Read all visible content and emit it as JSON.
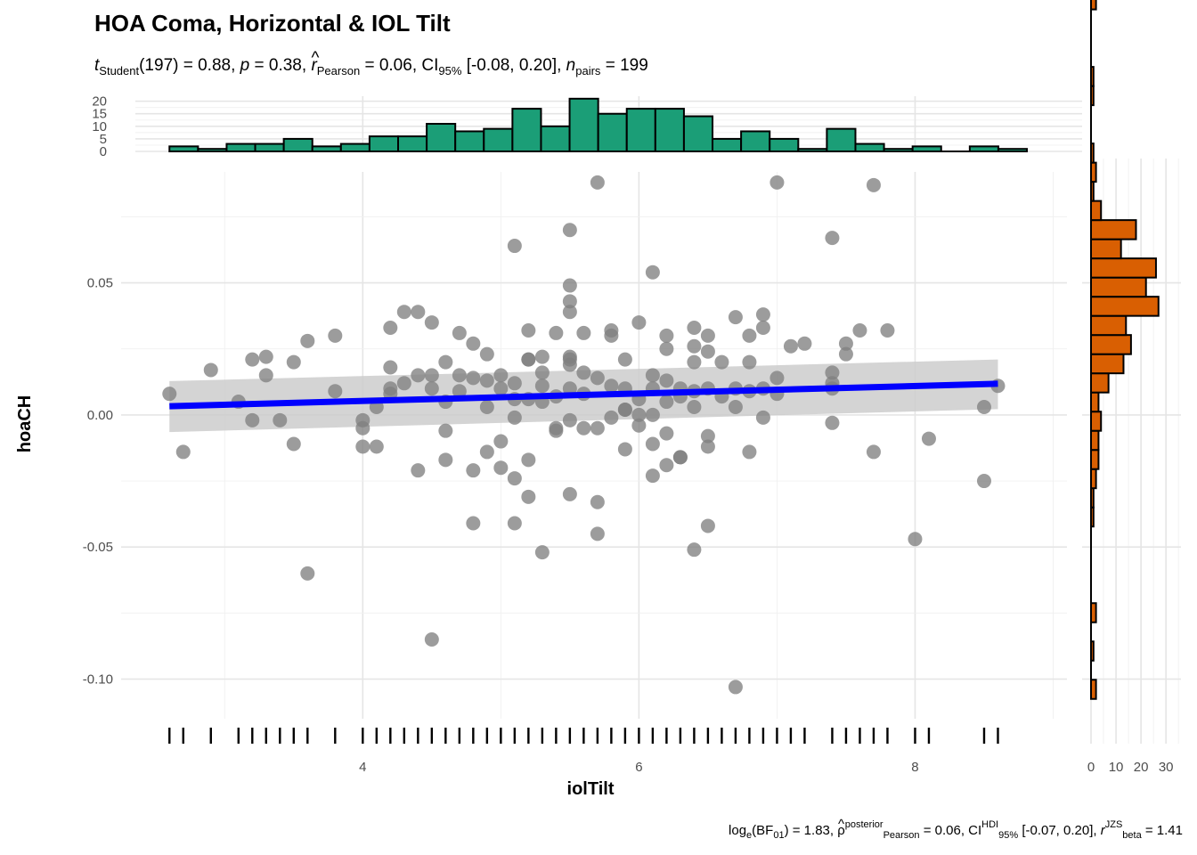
{
  "chart_data": {
    "type": "scatter",
    "title": "HOA Coma, Horizontal & IOL Tilt",
    "subtitle": {
      "t_symbol": "t",
      "t_sub": "Student",
      "t_val": "(197) = 0.88, ",
      "p_symbol": "p",
      "p_val": " = 0.38, ",
      "r_symbol": "r",
      "r_hat": "^",
      "r_sub": "Pearson",
      "r_val": " = 0.06, CI",
      "ci_sub": "95%",
      "ci_val": " [-0.08, 0.20], ",
      "n_symbol": "n",
      "n_sub": "pairs",
      "n_val": " = 199"
    },
    "footer": {
      "lead": "log",
      "lead_sub": "e",
      "bf_open": "(BF",
      "bf_sub": "01",
      "bf_val": ") = 1.83, ",
      "rho": "ρ",
      "rho_hat": "^",
      "rho_sup": "posterior",
      "rho_sub": "Pearson",
      "rho_val": " = 0.06, CI",
      "ci_sup": "HDI",
      "ci_sub": "95%",
      "ci_val": " [-0.07, 0.20], ",
      "r_symbol": "r",
      "r_sup": "JZS",
      "r_sub": "beta",
      "r_val": " = 1.41"
    },
    "xlabel": "iolTilt",
    "ylabel": "hoaCH",
    "xlim": [
      2.25,
      9.1
    ],
    "ylim": [
      -0.115,
      0.092
    ],
    "x_ticks": [
      4,
      6,
      8
    ],
    "x_tick_labels": [
      "4",
      "6",
      "8"
    ],
    "y_ticks": [
      -0.1,
      -0.05,
      0.0,
      0.05
    ],
    "y_tick_labels": [
      "-0.10",
      "-0.05",
      "0.00",
      "0.05"
    ],
    "grid": true,
    "point_color": "#808080",
    "points": [
      [
        2.6,
        0.008
      ],
      [
        2.7,
        -0.014
      ],
      [
        2.9,
        0.017
      ],
      [
        3.1,
        0.005
      ],
      [
        3.2,
        0.021
      ],
      [
        3.2,
        -0.002
      ],
      [
        3.3,
        0.015
      ],
      [
        3.3,
        0.022
      ],
      [
        3.4,
        -0.002
      ],
      [
        3.5,
        0.02
      ],
      [
        3.5,
        -0.011
      ],
      [
        3.6,
        0.028
      ],
      [
        3.6,
        -0.06
      ],
      [
        3.8,
        0.03
      ],
      [
        3.8,
        0.009
      ],
      [
        4.0,
        -0.002
      ],
      [
        4.0,
        -0.005
      ],
      [
        4.0,
        -0.012
      ],
      [
        4.1,
        0.003
      ],
      [
        4.1,
        -0.012
      ],
      [
        4.2,
        0.033
      ],
      [
        4.2,
        0.018
      ],
      [
        4.2,
        0.01
      ],
      [
        4.2,
        0.008
      ],
      [
        4.3,
        0.039
      ],
      [
        4.3,
        0.012
      ],
      [
        4.4,
        0.039
      ],
      [
        4.4,
        0.015
      ],
      [
        4.4,
        -0.021
      ],
      [
        4.5,
        0.035
      ],
      [
        4.5,
        0.015
      ],
      [
        4.5,
        0.01
      ],
      [
        4.5,
        -0.085
      ],
      [
        4.6,
        0.02
      ],
      [
        4.6,
        0.005
      ],
      [
        4.6,
        -0.006
      ],
      [
        4.6,
        -0.017
      ],
      [
        4.7,
        0.031
      ],
      [
        4.7,
        0.015
      ],
      [
        4.7,
        0.009
      ],
      [
        4.8,
        0.027
      ],
      [
        4.8,
        0.014
      ],
      [
        4.8,
        -0.021
      ],
      [
        4.8,
        -0.041
      ],
      [
        4.9,
        0.023
      ],
      [
        4.9,
        0.013
      ],
      [
        4.9,
        0.003
      ],
      [
        4.9,
        -0.014
      ],
      [
        5.0,
        0.015
      ],
      [
        5.0,
        0.01
      ],
      [
        5.0,
        -0.01
      ],
      [
        5.0,
        -0.02
      ],
      [
        5.1,
        0.064
      ],
      [
        5.1,
        0.012
      ],
      [
        5.1,
        0.006
      ],
      [
        5.1,
        -0.001
      ],
      [
        5.1,
        -0.024
      ],
      [
        5.1,
        -0.041
      ],
      [
        5.2,
        0.032
      ],
      [
        5.2,
        0.021
      ],
      [
        5.2,
        0.021
      ],
      [
        5.2,
        0.006
      ],
      [
        5.2,
        -0.017
      ],
      [
        5.2,
        -0.031
      ],
      [
        5.3,
        0.022
      ],
      [
        5.3,
        0.016
      ],
      [
        5.3,
        0.011
      ],
      [
        5.3,
        0.005
      ],
      [
        5.3,
        -0.052
      ],
      [
        5.4,
        0.031
      ],
      [
        5.4,
        0.007
      ],
      [
        5.4,
        -0.005
      ],
      [
        5.4,
        -0.006
      ],
      [
        5.5,
        0.07
      ],
      [
        5.5,
        0.049
      ],
      [
        5.5,
        0.043
      ],
      [
        5.5,
        0.039
      ],
      [
        5.5,
        0.022
      ],
      [
        5.5,
        0.021
      ],
      [
        5.5,
        0.019
      ],
      [
        5.5,
        0.01
      ],
      [
        5.5,
        -0.002
      ],
      [
        5.5,
        -0.03
      ],
      [
        5.6,
        0.031
      ],
      [
        5.6,
        0.016
      ],
      [
        5.6,
        0.008
      ],
      [
        5.6,
        -0.005
      ],
      [
        5.7,
        0.088
      ],
      [
        5.7,
        0.014
      ],
      [
        5.7,
        -0.005
      ],
      [
        5.7,
        -0.033
      ],
      [
        5.7,
        -0.045
      ],
      [
        5.8,
        0.032
      ],
      [
        5.8,
        0.03
      ],
      [
        5.8,
        0.011
      ],
      [
        5.8,
        -0.001
      ],
      [
        5.9,
        0.021
      ],
      [
        5.9,
        0.01
      ],
      [
        5.9,
        0.002
      ],
      [
        5.9,
        0.002
      ],
      [
        5.9,
        -0.013
      ],
      [
        6.0,
        0.035
      ],
      [
        6.0,
        0.006
      ],
      [
        6.0,
        0.0
      ],
      [
        6.0,
        -0.004
      ],
      [
        6.1,
        0.054
      ],
      [
        6.1,
        0.015
      ],
      [
        6.1,
        0.01
      ],
      [
        6.1,
        0.0
      ],
      [
        6.1,
        -0.011
      ],
      [
        6.1,
        -0.023
      ],
      [
        6.2,
        0.03
      ],
      [
        6.2,
        0.025
      ],
      [
        6.2,
        0.013
      ],
      [
        6.2,
        0.005
      ],
      [
        6.2,
        -0.007
      ],
      [
        6.2,
        -0.019
      ],
      [
        6.3,
        0.01
      ],
      [
        6.3,
        0.007
      ],
      [
        6.3,
        -0.016
      ],
      [
        6.3,
        -0.016
      ],
      [
        6.4,
        0.033
      ],
      [
        6.4,
        0.026
      ],
      [
        6.4,
        0.02
      ],
      [
        6.4,
        0.009
      ],
      [
        6.4,
        0.003
      ],
      [
        6.4,
        -0.051
      ],
      [
        6.5,
        0.03
      ],
      [
        6.5,
        0.024
      ],
      [
        6.5,
        0.01
      ],
      [
        6.5,
        -0.008
      ],
      [
        6.5,
        -0.012
      ],
      [
        6.5,
        -0.042
      ],
      [
        6.6,
        0.02
      ],
      [
        6.6,
        0.007
      ],
      [
        6.7,
        0.037
      ],
      [
        6.7,
        0.01
      ],
      [
        6.7,
        0.003
      ],
      [
        6.7,
        -0.103
      ],
      [
        6.8,
        0.03
      ],
      [
        6.8,
        0.02
      ],
      [
        6.8,
        0.009
      ],
      [
        6.8,
        -0.014
      ],
      [
        6.9,
        0.038
      ],
      [
        6.9,
        0.033
      ],
      [
        6.9,
        0.01
      ],
      [
        6.9,
        -0.001
      ],
      [
        7.0,
        0.088
      ],
      [
        7.0,
        0.014
      ],
      [
        7.0,
        0.008
      ],
      [
        7.1,
        0.026
      ],
      [
        7.2,
        0.027
      ],
      [
        7.4,
        0.067
      ],
      [
        7.4,
        0.016
      ],
      [
        7.4,
        0.012
      ],
      [
        7.4,
        0.01
      ],
      [
        7.4,
        -0.003
      ],
      [
        7.5,
        0.027
      ],
      [
        7.5,
        0.023
      ],
      [
        7.6,
        0.032
      ],
      [
        7.7,
        0.087
      ],
      [
        7.7,
        -0.014
      ],
      [
        7.8,
        0.032
      ],
      [
        8.0,
        -0.047
      ],
      [
        8.1,
        -0.009
      ],
      [
        8.5,
        0.003
      ],
      [
        8.5,
        -0.025
      ],
      [
        8.6,
        0.011
      ]
    ],
    "fit": {
      "color": "#0000ff",
      "x": [
        2.6,
        8.6
      ],
      "y": [
        0.0033,
        0.0118
      ],
      "ci_lower": [
        -0.0065,
        0.0022
      ],
      "ci_upper": [
        0.0128,
        0.021
      ],
      "ci_color": "#cccccc"
    },
    "x_rug": [
      2.6,
      2.7,
      2.9,
      3.1,
      3.2,
      3.3,
      3.4,
      3.5,
      3.6,
      3.8,
      4.0,
      4.1,
      4.2,
      4.3,
      4.4,
      4.5,
      4.6,
      4.7,
      4.8,
      4.9,
      5.0,
      5.1,
      5.2,
      5.3,
      5.4,
      5.5,
      5.6,
      5.7,
      5.8,
      5.9,
      6.0,
      6.1,
      6.2,
      6.3,
      6.4,
      6.5,
      6.6,
      6.7,
      6.8,
      6.9,
      7.0,
      7.1,
      7.2,
      7.4,
      7.5,
      7.6,
      7.7,
      7.8,
      8.0,
      8.1,
      8.5,
      8.6
    ],
    "x_hist": {
      "color": "#1b9e77",
      "start": 2.6,
      "binwidth": 0.207,
      "counts": [
        2,
        1,
        3,
        3,
        5,
        2,
        3,
        6,
        6,
        11,
        8,
        9,
        17,
        10,
        21,
        15,
        17,
        17,
        14,
        5,
        8,
        5,
        1,
        9,
        3,
        1,
        2,
        0,
        2,
        1
      ],
      "ylim": [
        0,
        22
      ],
      "ticks": [
        0,
        5,
        10,
        15,
        20
      ],
      "tick_labels": [
        "0",
        "5",
        "10",
        "15",
        "20"
      ]
    },
    "y_hist": {
      "color": "#d95f02",
      "start": -0.1075,
      "binwidth": 0.00725,
      "counts": [
        2,
        0,
        1,
        0,
        2,
        0,
        0,
        0,
        0,
        1,
        1,
        2,
        3,
        3,
        4,
        3,
        7,
        13,
        16,
        14,
        27,
        22,
        26,
        12,
        18,
        4,
        1,
        2,
        1,
        0,
        0,
        1,
        1,
        0,
        0,
        0,
        2,
        0,
        0,
        0,
        1
      ],
      "xlim": [
        0,
        36
      ],
      "ticks": [
        0,
        10,
        20,
        30
      ],
      "tick_labels": [
        "0",
        "10",
        "20",
        "30"
      ]
    }
  }
}
